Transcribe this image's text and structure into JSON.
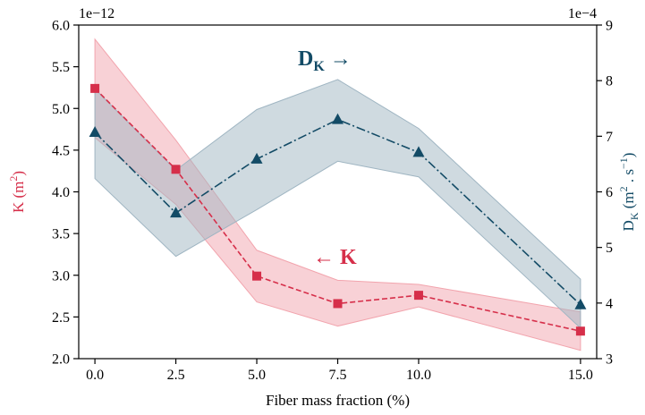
{
  "chart_data": {
    "type": "line",
    "x": [
      0.0,
      2.5,
      5.0,
      7.5,
      10.0,
      15.0
    ],
    "xticks": [
      "0.0",
      "2.5",
      "5.0",
      "7.5",
      "10.0",
      "15.0"
    ],
    "xlabel": "Fiber mass fraction (%)",
    "xlim": [
      -0.5,
      15.5
    ],
    "left_axis": {
      "label_main": "K (m",
      "label_sup": "2",
      "label_end": ")",
      "offset_text": "1e−12",
      "ylim": [
        2.0,
        6.0
      ],
      "ticks": [
        "2.0",
        "2.5",
        "3.0",
        "3.5",
        "4.0",
        "4.5",
        "5.0",
        "5.5",
        "6.0"
      ],
      "color": "#d62f4a"
    },
    "right_axis": {
      "label_main": "D",
      "label_sub": "K",
      "label_rest": " (m",
      "label_sup1": "2",
      "label_mid": " . s",
      "label_sup2": "−1",
      "label_end": ")",
      "offset_text": "1e−4",
      "ylim": [
        3,
        9
      ],
      "ticks": [
        "3",
        "4",
        "5",
        "6",
        "7",
        "8",
        "9"
      ],
      "color": "#134b66"
    },
    "series": [
      {
        "axis": "left",
        "marker": "square",
        "linestyle": "dashed",
        "color": "#d62f4a",
        "band_color": "#f2a4ad",
        "y": [
          5.24,
          4.27,
          2.99,
          2.66,
          2.76,
          2.33
        ],
        "lower": [
          4.65,
          3.85,
          2.68,
          2.39,
          2.62,
          2.1
        ],
        "upper": [
          5.83,
          4.62,
          3.3,
          2.94,
          2.89,
          2.56
        ]
      },
      {
        "axis": "right",
        "marker": "triangle",
        "linestyle": "dashdot",
        "color": "#134b66",
        "band_color": "#9fb5c2",
        "y": [
          7.07,
          5.62,
          6.59,
          7.3,
          6.71,
          3.97
        ],
        "lower": [
          6.24,
          4.84,
          5.68,
          6.55,
          6.27,
          3.55
        ],
        "upper": [
          7.85,
          6.39,
          7.48,
          8.02,
          7.14,
          4.43
        ]
      }
    ],
    "annotations": {
      "dk_main": "D",
      "dk_sub": "K",
      "dk_arrow": " →",
      "k_arrow": "← ",
      "k_main": "K"
    }
  }
}
